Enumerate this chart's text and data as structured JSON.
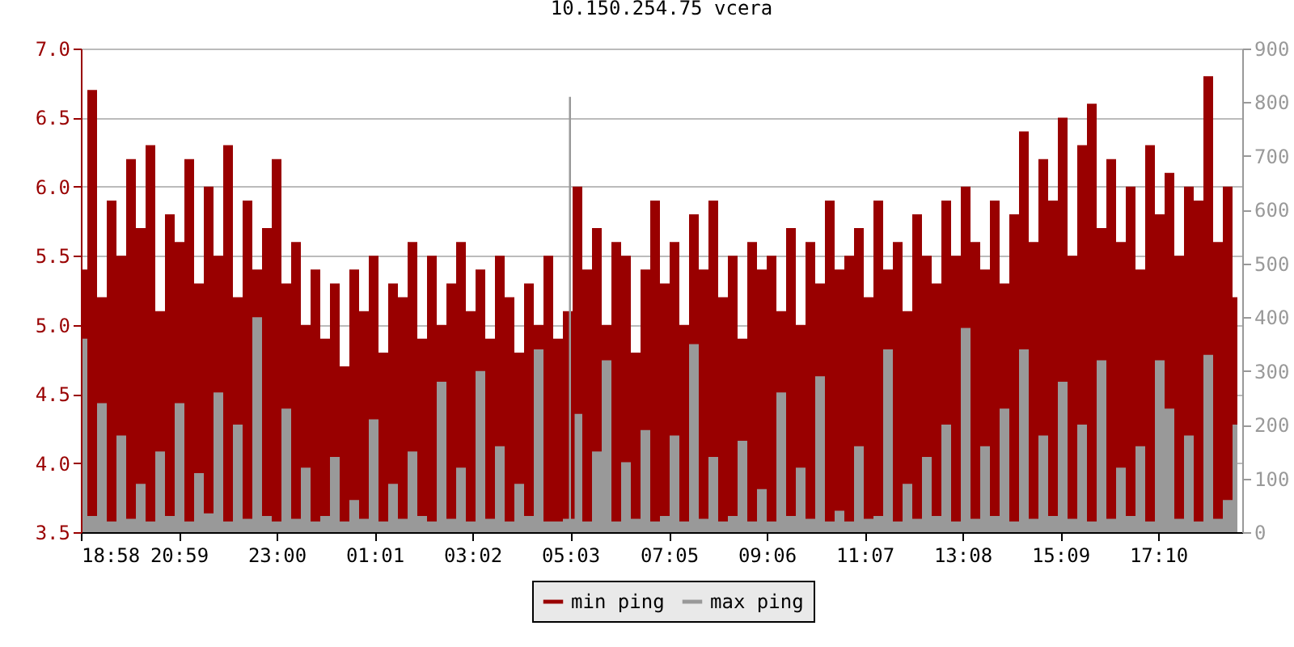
{
  "chart_data": {
    "type": "area",
    "title": "10.150.254.75 vcera",
    "x": [
      "2000-01-01T19:00",
      "2000-01-01T19:12",
      "2000-01-01T19:24",
      "2000-01-01T19:36",
      "2000-01-01T19:48",
      "2000-01-01T20:00",
      "2000-01-01T20:12",
      "2000-01-01T20:24",
      "2000-01-01T20:36",
      "2000-01-01T20:48",
      "2000-01-01T21:00",
      "2000-01-01T21:12",
      "2000-01-01T21:24",
      "2000-01-01T21:36",
      "2000-01-01T21:48",
      "2000-01-01T22:00",
      "2000-01-01T22:12",
      "2000-01-01T22:24",
      "2000-01-01T22:36",
      "2000-01-01T22:48",
      "2000-01-01T23:00",
      "2000-01-01T23:12",
      "2000-01-01T23:24",
      "2000-01-01T23:36",
      "2000-01-01T23:48",
      "2000-01-02T00:00",
      "2000-01-02T00:12",
      "2000-01-02T00:24",
      "2000-01-02T00:36",
      "2000-01-02T00:48",
      "2000-01-02T01:00",
      "2000-01-02T01:12",
      "2000-01-02T01:24",
      "2000-01-02T01:36",
      "2000-01-02T01:48",
      "2000-01-02T02:00",
      "2000-01-02T02:12",
      "2000-01-02T02:24",
      "2000-01-02T02:36",
      "2000-01-02T02:48",
      "2000-01-02T03:00",
      "2000-01-02T03:12",
      "2000-01-02T03:24",
      "2000-01-02T03:36",
      "2000-01-02T03:48",
      "2000-01-02T04:00",
      "2000-01-02T04:12",
      "2000-01-02T04:24",
      "2000-01-02T04:36",
      "2000-01-02T04:48",
      "2000-01-02T05:00",
      "2000-01-02T05:12",
      "2000-01-02T05:24",
      "2000-01-02T05:36",
      "2000-01-02T05:48",
      "2000-01-02T06:00",
      "2000-01-02T06:12",
      "2000-01-02T06:24",
      "2000-01-02T06:36",
      "2000-01-02T06:48",
      "2000-01-02T07:00",
      "2000-01-02T07:12",
      "2000-01-02T07:24",
      "2000-01-02T07:36",
      "2000-01-02T07:48",
      "2000-01-02T08:00",
      "2000-01-02T08:12",
      "2000-01-02T08:24",
      "2000-01-02T08:36",
      "2000-01-02T08:48",
      "2000-01-02T09:00",
      "2000-01-02T09:12",
      "2000-01-02T09:24",
      "2000-01-02T09:36",
      "2000-01-02T09:48",
      "2000-01-02T10:00",
      "2000-01-02T10:12",
      "2000-01-02T10:24",
      "2000-01-02T10:36",
      "2000-01-02T10:48",
      "2000-01-02T11:00",
      "2000-01-02T11:12",
      "2000-01-02T11:24",
      "2000-01-02T11:36",
      "2000-01-02T11:48",
      "2000-01-02T12:00",
      "2000-01-02T12:12",
      "2000-01-02T12:24",
      "2000-01-02T12:36",
      "2000-01-02T12:48",
      "2000-01-02T13:00",
      "2000-01-02T13:12",
      "2000-01-02T13:24",
      "2000-01-02T13:36",
      "2000-01-02T13:48",
      "2000-01-02T14:00",
      "2000-01-02T14:12",
      "2000-01-02T14:24",
      "2000-01-02T14:36",
      "2000-01-02T14:48",
      "2000-01-02T15:00",
      "2000-01-02T15:12",
      "2000-01-02T15:24",
      "2000-01-02T15:36",
      "2000-01-02T15:48",
      "2000-01-02T16:00",
      "2000-01-02T16:12",
      "2000-01-02T16:24",
      "2000-01-02T16:36",
      "2000-01-02T16:48",
      "2000-01-02T17:00",
      "2000-01-02T17:12",
      "2000-01-02T17:24",
      "2000-01-02T17:36",
      "2000-01-02T17:48",
      "2000-01-02T18:00",
      "2000-01-02T18:12",
      "2000-01-02T18:24",
      "2000-01-02T18:36",
      "2000-01-02T18:48"
    ],
    "series": [
      {
        "name": "min ping",
        "color": "#990000",
        "values": [
          5.4,
          6.7,
          5.2,
          5.9,
          5.5,
          6.2,
          5.7,
          6.3,
          5.1,
          5.8,
          5.6,
          6.2,
          5.3,
          6.0,
          5.5,
          6.3,
          5.2,
          5.9,
          5.4,
          5.7,
          6.2,
          5.3,
          5.6,
          5.0,
          5.4,
          4.9,
          5.3,
          4.7,
          5.4,
          5.1,
          5.5,
          4.8,
          5.3,
          5.2,
          5.6,
          4.9,
          5.5,
          5.0,
          5.3,
          5.6,
          5.1,
          5.4,
          4.9,
          5.5,
          5.2,
          4.8,
          5.3,
          5.0,
          5.5,
          4.9,
          5.1,
          6.0,
          5.4,
          5.7,
          5.0,
          5.6,
          5.5,
          4.8,
          5.4,
          5.9,
          5.3,
          5.6,
          5.0,
          5.8,
          5.4,
          5.9,
          5.2,
          5.5,
          4.9,
          5.6,
          5.4,
          5.5,
          5.1,
          5.7,
          5.0,
          5.6,
          5.3,
          5.9,
          5.4,
          5.5,
          5.7,
          5.2,
          5.9,
          5.4,
          5.6,
          5.1,
          5.8,
          5.5,
          5.3,
          5.9,
          5.5,
          6.0,
          5.6,
          5.4,
          5.9,
          5.3,
          5.8,
          6.4,
          5.6,
          6.2,
          5.9,
          6.5,
          5.5,
          6.3,
          6.6,
          5.7,
          6.2,
          5.6,
          6.0,
          5.4,
          6.3,
          5.8,
          6.1,
          5.5,
          6.0,
          5.9,
          6.8,
          5.6,
          6.0,
          5.2
        ]
      },
      {
        "name": "max ping",
        "color": "#999999",
        "axis": "y2",
        "x": [
          "2000-01-01T19:00",
          "2000-01-01T19:12",
          "2000-01-01T19:24",
          "2000-01-01T19:36",
          "2000-01-01T19:48",
          "2000-01-01T20:00",
          "2000-01-01T20:12",
          "2000-01-01T20:24",
          "2000-01-01T20:36",
          "2000-01-01T20:48",
          "2000-01-01T21:00",
          "2000-01-01T21:12",
          "2000-01-01T21:24",
          "2000-01-01T21:36",
          "2000-01-01T21:48",
          "2000-01-01T22:00",
          "2000-01-01T22:12",
          "2000-01-01T22:24",
          "2000-01-01T22:36",
          "2000-01-01T22:48",
          "2000-01-01T23:00",
          "2000-01-01T23:12",
          "2000-01-01T23:24",
          "2000-01-01T23:36",
          "2000-01-01T23:48",
          "2000-01-02T00:00",
          "2000-01-02T00:12",
          "2000-01-02T00:24",
          "2000-01-02T00:36",
          "2000-01-02T00:48",
          "2000-01-02T01:00",
          "2000-01-02T01:12",
          "2000-01-02T01:24",
          "2000-01-02T01:36",
          "2000-01-02T01:48",
          "2000-01-02T02:00",
          "2000-01-02T02:12",
          "2000-01-02T02:24",
          "2000-01-02T02:36",
          "2000-01-02T02:48",
          "2000-01-02T03:00",
          "2000-01-02T03:12",
          "2000-01-02T03:24",
          "2000-01-02T03:36",
          "2000-01-02T03:48",
          "2000-01-02T04:00",
          "2000-01-02T04:12",
          "2000-01-02T04:24",
          "2000-01-02T04:36",
          "2000-01-02T04:48",
          "2000-01-02T05:00",
          "2000-01-02T05:03",
          "2000-01-02T05:05",
          "2000-01-02T05:12",
          "2000-01-02T05:24",
          "2000-01-02T05:36",
          "2000-01-02T05:48",
          "2000-01-02T06:00",
          "2000-01-02T06:12",
          "2000-01-02T06:24",
          "2000-01-02T06:36",
          "2000-01-02T06:48",
          "2000-01-02T07:00",
          "2000-01-02T07:12",
          "2000-01-02T07:24",
          "2000-01-02T07:36",
          "2000-01-02T07:48",
          "2000-01-02T08:00",
          "2000-01-02T08:12",
          "2000-01-02T08:24",
          "2000-01-02T08:36",
          "2000-01-02T08:48",
          "2000-01-02T09:00",
          "2000-01-02T09:12",
          "2000-01-02T09:24",
          "2000-01-02T09:36",
          "2000-01-02T09:48",
          "2000-01-02T10:00",
          "2000-01-02T10:12",
          "2000-01-02T10:24",
          "2000-01-02T10:36",
          "2000-01-02T10:48",
          "2000-01-02T11:00",
          "2000-01-02T11:12",
          "2000-01-02T11:24",
          "2000-01-02T11:36",
          "2000-01-02T11:48",
          "2000-01-02T12:00",
          "2000-01-02T12:12",
          "2000-01-02T12:24",
          "2000-01-02T12:36",
          "2000-01-02T12:48",
          "2000-01-02T13:00",
          "2000-01-02T13:12",
          "2000-01-02T13:24",
          "2000-01-02T13:36",
          "2000-01-02T13:48",
          "2000-01-02T14:00",
          "2000-01-02T14:12",
          "2000-01-02T14:24",
          "2000-01-02T14:36",
          "2000-01-02T14:48",
          "2000-01-02T15:00",
          "2000-01-02T15:12",
          "2000-01-02T15:24",
          "2000-01-02T15:36",
          "2000-01-02T15:48",
          "2000-01-02T16:00",
          "2000-01-02T16:12",
          "2000-01-02T16:24",
          "2000-01-02T16:36",
          "2000-01-02T16:48",
          "2000-01-02T17:00",
          "2000-01-02T17:12",
          "2000-01-02T17:24",
          "2000-01-02T17:36",
          "2000-01-02T17:48",
          "2000-01-02T18:00",
          "2000-01-02T18:12",
          "2000-01-02T18:24",
          "2000-01-02T18:36",
          "2000-01-02T18:48"
        ],
        "values": [
          360,
          30,
          240,
          20,
          180,
          25,
          90,
          20,
          150,
          30,
          240,
          20,
          110,
          35,
          260,
          20,
          200,
          25,
          400,
          30,
          20,
          230,
          25,
          120,
          20,
          30,
          140,
          20,
          60,
          25,
          210,
          20,
          90,
          25,
          150,
          30,
          20,
          280,
          25,
          120,
          20,
          300,
          25,
          160,
          20,
          90,
          30,
          340,
          20,
          20,
          25,
          810,
          25,
          220,
          20,
          150,
          320,
          20,
          130,
          25,
          190,
          20,
          30,
          180,
          20,
          350,
          25,
          140,
          20,
          30,
          170,
          20,
          80,
          20,
          260,
          30,
          120,
          25,
          290,
          20,
          40,
          20,
          160,
          25,
          30,
          340,
          20,
          90,
          25,
          140,
          30,
          200,
          20,
          380,
          25,
          160,
          30,
          230,
          20,
          340,
          25,
          180,
          30,
          280,
          25,
          200,
          20,
          320,
          25,
          120,
          30,
          160,
          20,
          320,
          230,
          25,
          180,
          20,
          330,
          25,
          60,
          200
        ]
      }
    ],
    "xlim": [
      "2000-01-01T18:58",
      "2000-01-02T18:54"
    ],
    "xticks": [
      {
        "value": "2000-01-01T18:58",
        "label": "18:58"
      },
      {
        "value": "2000-01-01T20:59",
        "label": "20:59"
      },
      {
        "value": "2000-01-01T23:00",
        "label": "23:00"
      },
      {
        "value": "2000-01-02T01:01",
        "label": "01:01"
      },
      {
        "value": "2000-01-02T03:02",
        "label": "03:02"
      },
      {
        "value": "2000-01-02T05:03",
        "label": "05:03"
      },
      {
        "value": "2000-01-02T07:05",
        "label": "07:05"
      },
      {
        "value": "2000-01-02T09:06",
        "label": "09:06"
      },
      {
        "value": "2000-01-02T11:07",
        "label": "11:07"
      },
      {
        "value": "2000-01-02T13:08",
        "label": "13:08"
      },
      {
        "value": "2000-01-02T15:09",
        "label": "15:09"
      },
      {
        "value": "2000-01-02T17:10",
        "label": "17:10"
      }
    ],
    "ylim": [
      3.5,
      7.0
    ],
    "yticks": [
      3.5,
      {
        "value": 4,
        "label": "4.0"
      },
      4.5,
      {
        "value": 5,
        "label": "5.0"
      },
      5.5,
      {
        "value": 6,
        "label": "6.0"
      },
      6.5,
      {
        "value": 7,
        "label": "7.0"
      }
    ],
    "y2lim": [
      0,
      900
    ],
    "y2ticks": [
      0,
      100,
      200,
      300,
      400,
      500,
      600,
      700,
      800,
      900
    ],
    "grid": "y",
    "legend": "bottom"
  }
}
